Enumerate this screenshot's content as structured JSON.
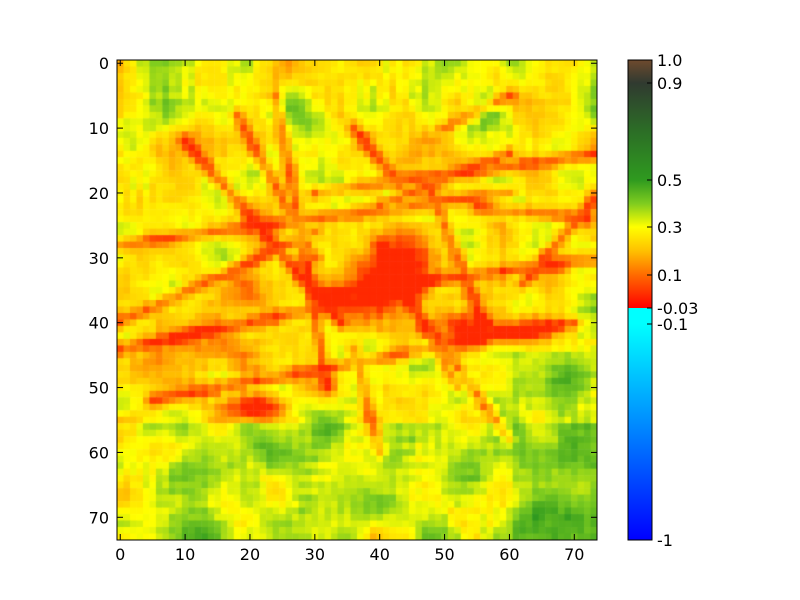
{
  "chart_data": {
    "type": "heatmap",
    "title": "",
    "xlabel": "",
    "ylabel": "",
    "xlim": [
      0,
      74
    ],
    "ylim": [
      74,
      0
    ],
    "x_ticks": [
      0,
      10,
      20,
      30,
      40,
      50,
      60,
      70
    ],
    "y_ticks": [
      0,
      10,
      20,
      30,
      40,
      50,
      60,
      70
    ],
    "grid_size": [
      74,
      74
    ],
    "description_of_values": "NDVI-like index map; high values (green) at edges, low values (red/orange) in central urban area",
    "colorbar": {
      "ticks": [
        {
          "value": 1.0,
          "label": "1.0"
        },
        {
          "value": 0.9,
          "label": "0.9"
        },
        {
          "value": 0.5,
          "label": "0.5"
        },
        {
          "value": 0.3,
          "label": "0.3"
        },
        {
          "value": 0.1,
          "label": "0.1"
        },
        {
          "value": -0.03,
          "label": "-0.03"
        },
        {
          "value": -0.1,
          "label": "-0.1"
        },
        {
          "value": -1,
          "label": "-1"
        }
      ],
      "stops": [
        {
          "value": -1,
          "color": "#0000ff"
        },
        {
          "value": -0.5,
          "color": "#0090ff"
        },
        {
          "value": -0.1,
          "color": "#00ffff"
        },
        {
          "value": -0.03,
          "color": "#00ffff"
        },
        {
          "value": -0.0299,
          "color": "#ff0000"
        },
        {
          "value": 0.1,
          "color": "#ff6a00"
        },
        {
          "value": 0.2,
          "color": "#ffc000"
        },
        {
          "value": 0.3,
          "color": "#ffff00"
        },
        {
          "value": 0.4,
          "color": "#7fcc1f"
        },
        {
          "value": 0.5,
          "color": "#2f9a1f"
        },
        {
          "value": 0.7,
          "color": "#2c6e26"
        },
        {
          "value": 0.9,
          "color": "#303a30"
        },
        {
          "value": 1.0,
          "color": "#6e4a2e"
        }
      ]
    }
  }
}
